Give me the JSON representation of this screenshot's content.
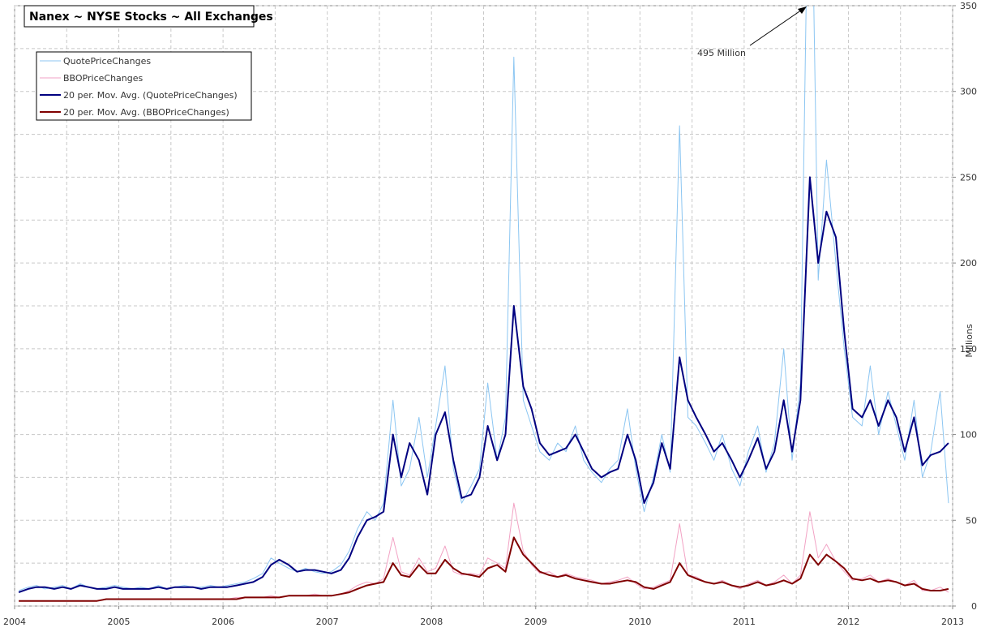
{
  "chart_data": {
    "type": "line",
    "title": "Nanex ~ NYSE Stocks ~ All Exchanges",
    "y_label": "Millions",
    "annotation": "495 Million",
    "legend": "top-left",
    "grid": true,
    "xlim": [
      2004,
      2013
    ],
    "xticks": [
      2004,
      2005,
      2006,
      2007,
      2008,
      2009,
      2010,
      2011,
      2012,
      2013
    ],
    "ylim": [
      0,
      350
    ],
    "yticks": [
      0,
      50,
      100,
      150,
      200,
      250,
      300,
      350
    ],
    "x": [
      2004.04,
      2004.13,
      2004.21,
      2004.29,
      2004.38,
      2004.46,
      2004.54,
      2004.63,
      2004.71,
      2004.79,
      2004.88,
      2004.96,
      2005.04,
      2005.13,
      2005.21,
      2005.29,
      2005.38,
      2005.46,
      2005.54,
      2005.63,
      2005.71,
      2005.79,
      2005.88,
      2005.96,
      2006.04,
      2006.13,
      2006.21,
      2006.29,
      2006.38,
      2006.46,
      2006.54,
      2006.63,
      2006.71,
      2006.79,
      2006.88,
      2006.96,
      2007.04,
      2007.13,
      2007.21,
      2007.29,
      2007.38,
      2007.46,
      2007.54,
      2007.63,
      2007.71,
      2007.79,
      2007.88,
      2007.96,
      2008.04,
      2008.13,
      2008.21,
      2008.29,
      2008.38,
      2008.46,
      2008.54,
      2008.63,
      2008.71,
      2008.79,
      2008.88,
      2008.96,
      2009.04,
      2009.13,
      2009.21,
      2009.29,
      2009.38,
      2009.46,
      2009.54,
      2009.63,
      2009.71,
      2009.79,
      2009.88,
      2009.96,
      2010.04,
      2010.13,
      2010.21,
      2010.29,
      2010.38,
      2010.46,
      2010.54,
      2010.63,
      2010.71,
      2010.79,
      2010.88,
      2010.96,
      2011.04,
      2011.13,
      2011.21,
      2011.29,
      2011.38,
      2011.46,
      2011.54,
      2011.63,
      2011.71,
      2011.79,
      2011.88,
      2011.96,
      2012.04,
      2012.13,
      2012.21,
      2012.29,
      2012.38,
      2012.46,
      2012.54,
      2012.63,
      2012.71,
      2012.79,
      2012.88,
      2012.96
    ],
    "series": [
      {
        "name": "QuotePriceChanges",
        "color": "#8cc6f2",
        "width": 1,
        "values": [
          9,
          11,
          12,
          10,
          11,
          12,
          10,
          13,
          11,
          10,
          11,
          12,
          11,
          10,
          11,
          10,
          12,
          10,
          11,
          12,
          11,
          11,
          12,
          11,
          12,
          13,
          14,
          16,
          19,
          28,
          25,
          22,
          20,
          22,
          20,
          19,
          20,
          24,
          32,
          45,
          55,
          50,
          60,
          120,
          70,
          80,
          110,
          75,
          105,
          140,
          80,
          60,
          70,
          80,
          130,
          85,
          110,
          320,
          120,
          105,
          90,
          85,
          95,
          90,
          105,
          85,
          78,
          72,
          80,
          85,
          115,
          80,
          55,
          75,
          100,
          78,
          280,
          110,
          105,
          95,
          85,
          100,
          80,
          70,
          90,
          105,
          78,
          95,
          150,
          85,
          130,
          495,
          190,
          260,
          200,
          150,
          110,
          105,
          140,
          100,
          125,
          105,
          85,
          120,
          75,
          90,
          125,
          60
        ]
      },
      {
        "name": "BBOPriceChanges",
        "color": "#f2a2c4",
        "width": 1,
        "values": [
          3,
          3,
          3,
          3,
          3,
          3,
          3,
          3,
          3,
          3,
          4,
          4,
          4,
          4,
          4,
          4,
          4,
          4,
          4,
          4,
          4,
          4,
          4,
          4,
          4,
          5,
          5,
          5,
          5,
          6,
          5,
          6,
          6,
          6,
          7,
          6,
          6,
          7,
          9,
          12,
          14,
          13,
          16,
          40,
          20,
          18,
          28,
          20,
          22,
          35,
          20,
          18,
          19,
          18,
          28,
          25,
          22,
          60,
          32,
          24,
          19,
          20,
          17,
          19,
          17,
          16,
          15,
          13,
          14,
          15,
          17,
          13,
          10,
          11,
          13,
          15,
          48,
          18,
          17,
          14,
          13,
          15,
          12,
          10,
          13,
          15,
          12,
          14,
          18,
          13,
          18,
          55,
          28,
          36,
          26,
          20,
          15,
          16,
          18,
          14,
          16,
          14,
          12,
          15,
          9,
          9,
          11,
          8
        ]
      },
      {
        "name": "20 per. Mov. Avg. (QuotePriceChanges)",
        "color": "#000080",
        "width": 2,
        "values": [
          8,
          10,
          11,
          11,
          10,
          11,
          10,
          12,
          11,
          10,
          10,
          11,
          10,
          10,
          10,
          10,
          11,
          10,
          11,
          11,
          11,
          10,
          11,
          11,
          11,
          12,
          13,
          14,
          17,
          24,
          27,
          24,
          20,
          21,
          21,
          20,
          19,
          21,
          28,
          40,
          50,
          52,
          55,
          100,
          75,
          95,
          85,
          65,
          100,
          113,
          85,
          63,
          65,
          75,
          105,
          85,
          100,
          175,
          128,
          115,
          95,
          88,
          90,
          92,
          100,
          90,
          80,
          75,
          78,
          80,
          100,
          85,
          60,
          72,
          95,
          80,
          145,
          120,
          110,
          100,
          90,
          95,
          85,
          75,
          85,
          98,
          80,
          90,
          120,
          90,
          120,
          250,
          200,
          230,
          215,
          160,
          115,
          110,
          120,
          105,
          120,
          110,
          90,
          110,
          82,
          88,
          90,
          95
        ]
      },
      {
        "name": "20 per. Mov. Avg. (BBOPriceChanges)",
        "color": "#800000",
        "width": 2,
        "values": [
          3,
          3,
          3,
          3,
          3,
          3,
          3,
          3,
          3,
          3,
          4,
          4,
          4,
          4,
          4,
          4,
          4,
          4,
          4,
          4,
          4,
          4,
          4,
          4,
          4,
          4,
          5,
          5,
          5,
          5,
          5,
          6,
          6,
          6,
          6,
          6,
          6,
          7,
          8,
          10,
          12,
          13,
          14,
          25,
          18,
          17,
          24,
          19,
          19,
          27,
          22,
          19,
          18,
          17,
          22,
          24,
          20,
          40,
          30,
          25,
          20,
          18,
          17,
          18,
          16,
          15,
          14,
          13,
          13,
          14,
          15,
          14,
          11,
          10,
          12,
          14,
          25,
          18,
          16,
          14,
          13,
          14,
          12,
          11,
          12,
          14,
          12,
          13,
          15,
          13,
          16,
          30,
          24,
          30,
          26,
          22,
          16,
          15,
          16,
          14,
          15,
          14,
          12,
          13,
          10,
          9,
          9,
          10
        ]
      }
    ]
  }
}
